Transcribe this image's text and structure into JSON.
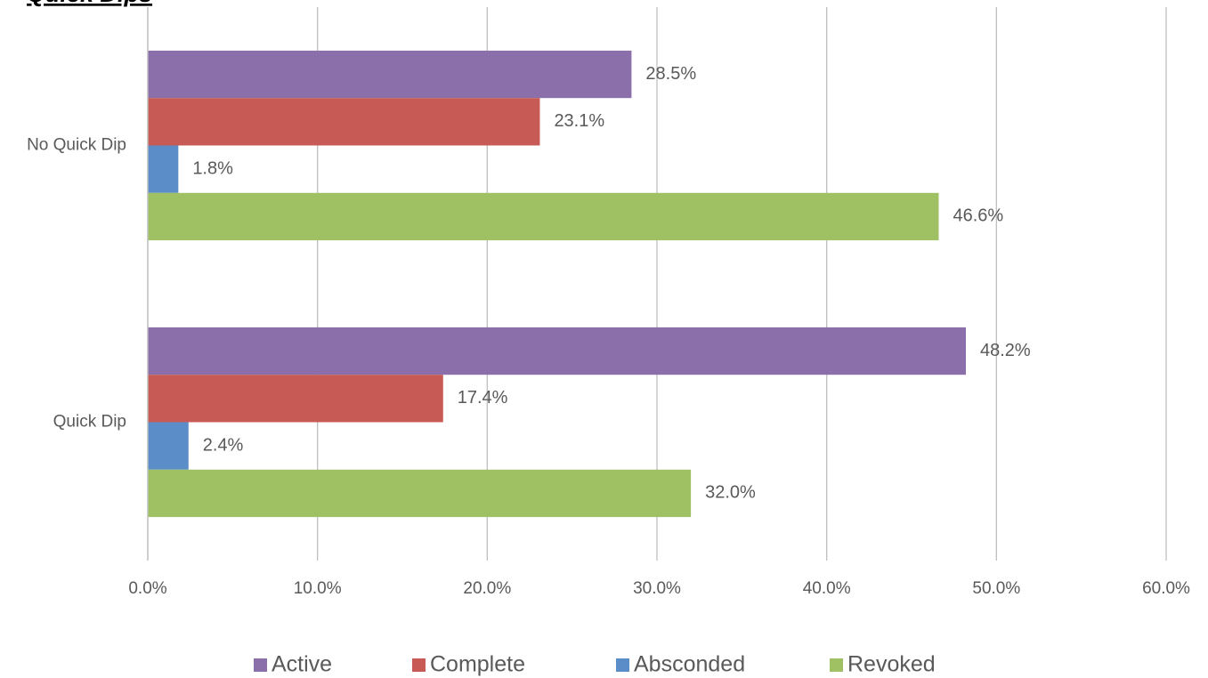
{
  "chart_data": {
    "type": "hbar",
    "title": "Quick Dips",
    "categories": [
      "No Quick Dip",
      "Quick Dip"
    ],
    "series": [
      {
        "name": "Active",
        "color": "#8b6fab",
        "values": [
          28.5,
          48.2
        ],
        "value_labels": [
          "28.5%",
          "48.2%"
        ]
      },
      {
        "name": "Complete",
        "color": "#c85a55",
        "values": [
          23.1,
          17.4
        ],
        "value_labels": [
          "23.1%",
          "17.4%"
        ]
      },
      {
        "name": "Absconded",
        "color": "#5b8ec8",
        "values": [
          1.8,
          2.4
        ],
        "value_labels": [
          "1.8%",
          "2.4%"
        ]
      },
      {
        "name": "Revoked",
        "color": "#9fc164",
        "values": [
          46.6,
          32.0
        ],
        "value_labels": [
          "46.6%",
          "32.0%"
        ]
      }
    ],
    "xlim": [
      0,
      60
    ],
    "xticks": [
      {
        "value": 0,
        "label": "0.0%"
      },
      {
        "value": 10,
        "label": "10.0%"
      },
      {
        "value": 20,
        "label": "20.0%"
      },
      {
        "value": 30,
        "label": "30.0%"
      },
      {
        "value": 40,
        "label": "40.0%"
      },
      {
        "value": 50,
        "label": "50.0%"
      },
      {
        "value": 60,
        "label": "60.0%"
      }
    ],
    "grid": true,
    "legend": "bottom"
  }
}
